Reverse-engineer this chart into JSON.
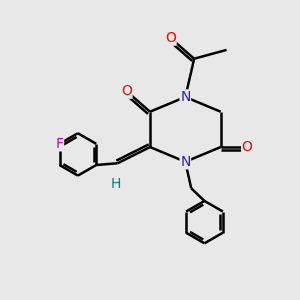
{
  "background_color": "#e8e8e8",
  "atom_colors": {
    "C": "#000000",
    "N": "#2222cc",
    "O": "#ff0000",
    "F": "#cc00cc",
    "H": "#008080"
  },
  "bond_width": 1.8,
  "figsize": [
    3.0,
    3.0
  ],
  "dpi": 100,
  "xlim": [
    0,
    10
  ],
  "ylim": [
    0,
    10
  ]
}
